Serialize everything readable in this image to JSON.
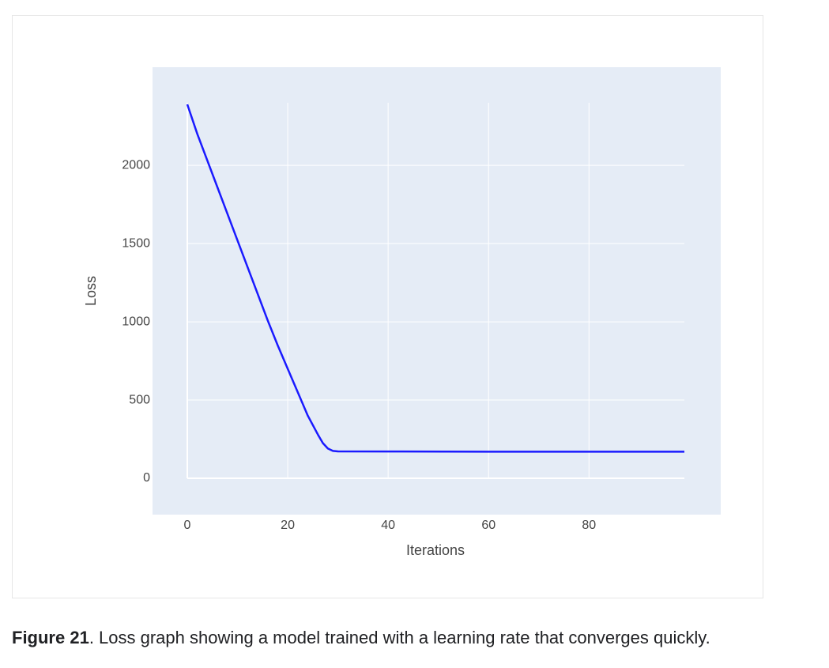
{
  "chart_data": {
    "type": "line",
    "x_label": "Iterations",
    "y_label": "Loss",
    "x": [
      0,
      2,
      4,
      6,
      8,
      10,
      12,
      14,
      16,
      18,
      20,
      22,
      24,
      25,
      26,
      27,
      28,
      29,
      30,
      40,
      60,
      80,
      99
    ],
    "series": [
      {
        "name": "Loss",
        "color": "#1a1aff",
        "values": [
          2390,
          2200,
          2030,
          1860,
          1690,
          1520,
          1350,
          1180,
          1010,
          850,
          700,
          550,
          400,
          340,
          280,
          225,
          190,
          175,
          172,
          171,
          170,
          170,
          170
        ]
      }
    ],
    "xlim": [
      0,
      99
    ],
    "ylim": [
      0,
      2400
    ],
    "xticks": [
      0,
      20,
      40,
      60,
      80
    ],
    "yticks": [
      0,
      500,
      1000,
      1500,
      2000
    ],
    "grid": true,
    "background": "#e5ecf6"
  },
  "caption": {
    "label": "Figure 21",
    "text": ". Loss graph showing a model trained with a learning rate that converges quickly."
  }
}
